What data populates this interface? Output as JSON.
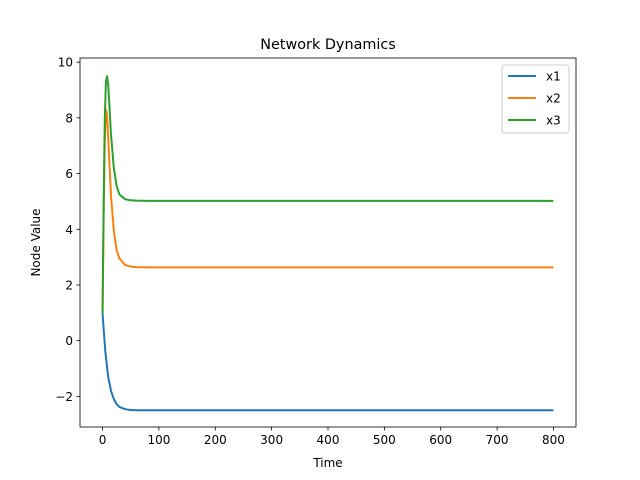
{
  "chart_data": {
    "type": "line",
    "title": "Network Dynamics",
    "xlabel": "Time",
    "ylabel": "Node Value",
    "xlim": [
      -40,
      840
    ],
    "ylim": [
      -3.1,
      10.15
    ],
    "xticks": [
      0,
      100,
      200,
      300,
      400,
      500,
      600,
      700,
      800
    ],
    "yticks": [
      -2,
      0,
      2,
      4,
      6,
      8,
      10
    ],
    "grid": false,
    "legend": "top-right",
    "series": [
      {
        "name": "x1",
        "color": "#1f77b4",
        "x": [
          0,
          2,
          5,
          10,
          15,
          20,
          25,
          30,
          40,
          50,
          60,
          80,
          100,
          200,
          400,
          600,
          800
        ],
        "y": [
          1.0,
          0.4,
          -0.4,
          -1.3,
          -1.8,
          -2.1,
          -2.28,
          -2.38,
          -2.46,
          -2.49,
          -2.5,
          -2.5,
          -2.5,
          -2.5,
          -2.5,
          -2.5,
          -2.5
        ]
      },
      {
        "name": "x2",
        "color": "#ff7f0e",
        "x": [
          0,
          2,
          4,
          6,
          8,
          10,
          15,
          20,
          25,
          30,
          40,
          50,
          60,
          80,
          100,
          200,
          400,
          600,
          800
        ],
        "y": [
          1.0,
          4.5,
          7.2,
          8.3,
          8.1,
          7.3,
          5.2,
          3.95,
          3.25,
          2.95,
          2.72,
          2.66,
          2.64,
          2.63,
          2.63,
          2.63,
          2.63,
          2.63,
          2.63
        ]
      },
      {
        "name": "x3",
        "color": "#2ca02c",
        "x": [
          0,
          2,
          4,
          6,
          8,
          10,
          12,
          15,
          20,
          25,
          30,
          40,
          50,
          60,
          80,
          100,
          200,
          400,
          600,
          800
        ],
        "y": [
          1.0,
          5.0,
          8.0,
          9.3,
          9.5,
          9.2,
          8.5,
          7.4,
          6.2,
          5.55,
          5.25,
          5.08,
          5.04,
          5.03,
          5.02,
          5.02,
          5.02,
          5.02,
          5.02,
          5.02
        ]
      }
    ]
  }
}
